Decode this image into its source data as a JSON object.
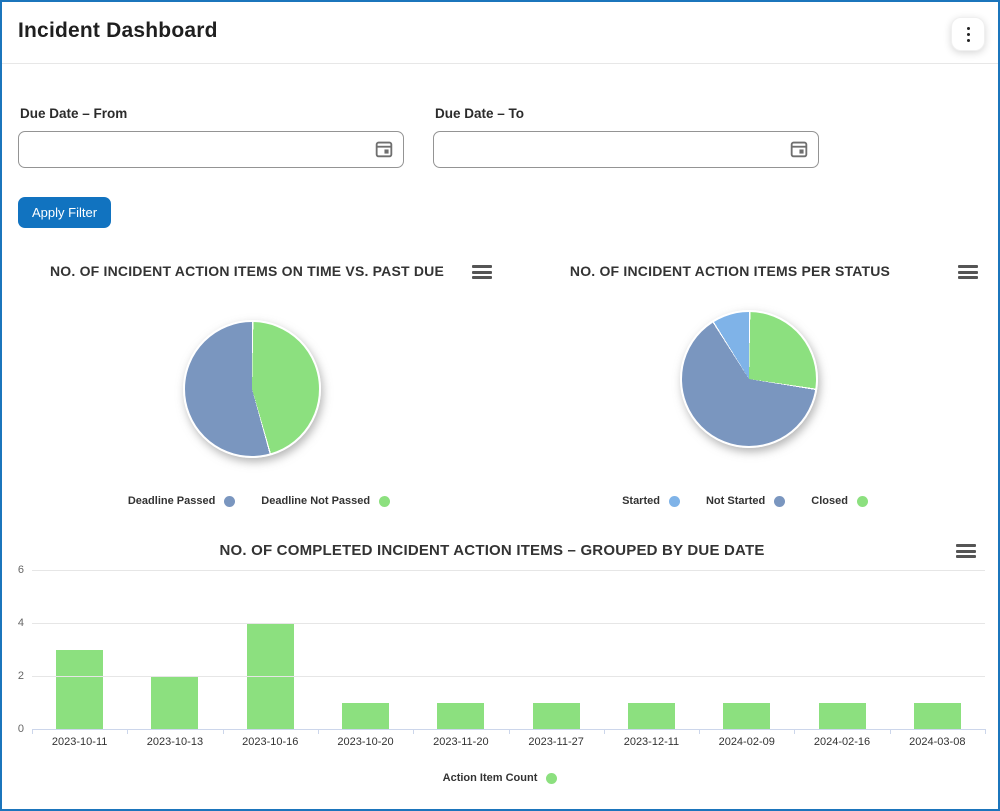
{
  "header": {
    "title": "Incident Dashboard"
  },
  "filters": {
    "from": {
      "label": "Due Date – From",
      "value": "",
      "placeholder": ""
    },
    "to": {
      "label": "Due Date – To",
      "value": "",
      "placeholder": ""
    },
    "apply_label": "Apply Filter"
  },
  "colors": {
    "page_border": "#1b75bc",
    "button_blue": "#1173c0",
    "slice_gray_blue": "#7a96bf",
    "slice_green": "#8ce07f",
    "slice_light_blue": "#7fb3e8",
    "axis_line": "#ccd6eb",
    "gridline": "#e6e6e6"
  },
  "chart_data": [
    {
      "type": "pie",
      "title": "NO. OF INCIDENT ACTION ITEMS ON TIME VS. PAST DUE",
      "legend_position": "bottom",
      "slices": [
        {
          "label": "Deadline Passed",
          "value": 6,
          "color": "#7a96bf"
        },
        {
          "label": "Deadline Not Passed",
          "value": 5,
          "color": "#8ce07f"
        }
      ]
    },
    {
      "type": "pie",
      "title": "NO. OF INCIDENT ACTION ITEMS PER STATUS",
      "legend_position": "bottom",
      "slices": [
        {
          "label": "Started",
          "value": 1,
          "color": "#7fb3e8"
        },
        {
          "label": "Not Started",
          "value": 7,
          "color": "#7a96bf"
        },
        {
          "label": "Closed",
          "value": 3,
          "color": "#8ce07f"
        }
      ]
    },
    {
      "type": "bar",
      "title": "NO. OF COMPLETED INCIDENT ACTION ITEMS – GROUPED BY DUE DATE",
      "series_name": "Action Item Count",
      "color": "#8ce07f",
      "categories": [
        "2023-10-11",
        "2023-10-13",
        "2023-10-16",
        "2023-10-20",
        "2023-11-20",
        "2023-11-27",
        "2023-12-11",
        "2024-02-09",
        "2024-02-16",
        "2024-03-08"
      ],
      "values": [
        3,
        2,
        4,
        1,
        1,
        1,
        1,
        1,
        1,
        1
      ],
      "xlabel": "",
      "ylabel": "",
      "ylim": [
        0,
        6
      ],
      "yticks": [
        0,
        2,
        4,
        6
      ],
      "grid": true,
      "legend_position": "bottom"
    }
  ]
}
